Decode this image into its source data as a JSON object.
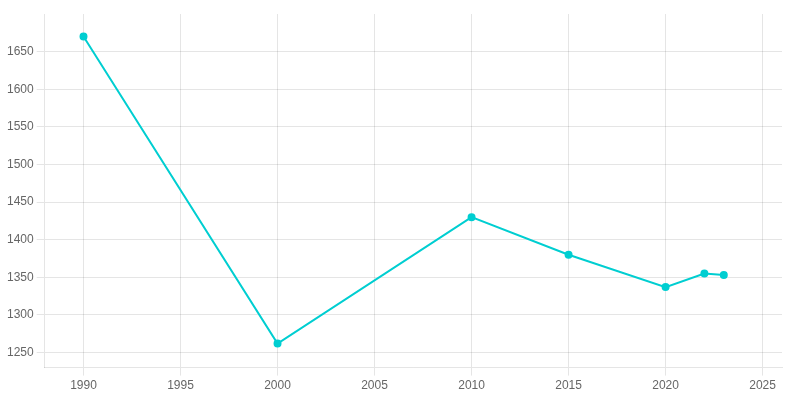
{
  "chart_data": {
    "type": "line",
    "x": [
      1990,
      2000,
      2010,
      2015,
      2020,
      2022,
      2023
    ],
    "values": [
      1670,
      1262,
      1430,
      1380,
      1337,
      1355,
      1353
    ],
    "color": "#00CED1",
    "marker": "circle",
    "line_style": "solid",
    "xlim": [
      1988,
      2026
    ],
    "ylim": [
      1230,
      1700
    ],
    "xticks": [
      1990,
      1995,
      2000,
      2005,
      2010,
      2015,
      2020,
      2025
    ],
    "yticks": [
      1250,
      1300,
      1350,
      1400,
      1450,
      1500,
      1550,
      1600,
      1650
    ],
    "grid": true
  }
}
